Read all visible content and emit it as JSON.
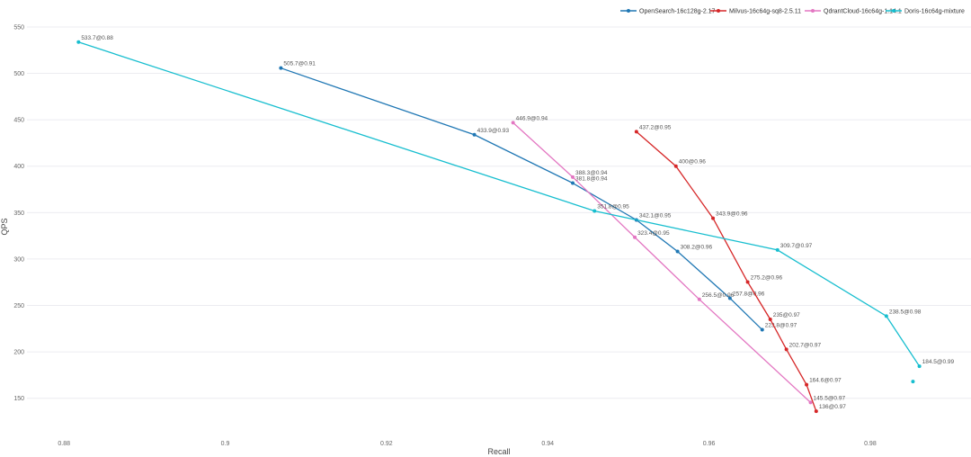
{
  "chart_data": {
    "type": "line",
    "title": "",
    "xlabel": "Recall",
    "ylabel": "QPS",
    "xlim": [
      0.8763,
      0.9925
    ],
    "ylim": [
      109,
      561.6
    ],
    "xticks": [
      0.88,
      0.9,
      0.92,
      0.94,
      0.96,
      0.98
    ],
    "xtick_labels": [
      "0.88",
      "0.9",
      "0.92",
      "0.94",
      "0.96",
      "0.98"
    ],
    "yticks": [
      150,
      200,
      250,
      300,
      350,
      400,
      450,
      500,
      550
    ],
    "ytick_labels": [
      "150",
      "200",
      "250",
      "300",
      "350",
      "400",
      "450",
      "500",
      "550"
    ],
    "grid": "horizontal",
    "legend_position": "top-right",
    "series": [
      {
        "name": "OpenSearch-16c128g-2.17",
        "color": "#1f77b4",
        "points": [
          {
            "x": 0.9069,
            "y": 505.7,
            "label": "505.7@0.91"
          },
          {
            "x": 0.9309,
            "y": 433.9,
            "label": "433.9@0.93"
          },
          {
            "x": 0.9431,
            "y": 381.8,
            "label": "381.8@0.94"
          },
          {
            "x": 0.951,
            "y": 342.1,
            "label": "342.1@0.95"
          },
          {
            "x": 0.9561,
            "y": 308.2,
            "label": "308.2@0.96"
          },
          {
            "x": 0.9626,
            "y": 257.8,
            "label": "257.8@0.96"
          },
          {
            "x": 0.9666,
            "y": 223.8,
            "label": "223.8@0.97"
          }
        ]
      },
      {
        "name": "Milvus-16c64g-sq8-2.5.11",
        "color": "#d62728",
        "points": [
          {
            "x": 0.951,
            "y": 437.2,
            "label": "437.2@0.95"
          },
          {
            "x": 0.9559,
            "y": 400,
            "label": "400@0.96"
          },
          {
            "x": 0.9605,
            "y": 343.9,
            "label": "343.9@0.96"
          },
          {
            "x": 0.9648,
            "y": 275.2,
            "label": "275.2@0.96"
          },
          {
            "x": 0.9676,
            "y": 235,
            "label": "235@0.97"
          },
          {
            "x": 0.9696,
            "y": 202.7,
            "label": "202.7@0.97"
          },
          {
            "x": 0.9721,
            "y": 164.6,
            "label": "164.6@0.97"
          },
          {
            "x": 0.9733,
            "y": 136,
            "label": "136@0.97"
          }
        ]
      },
      {
        "name": "QdrantCloud-16c64g-1.14.1",
        "color": "#e377c2",
        "points": [
          {
            "x": 0.9357,
            "y": 446.9,
            "label": "446.9@0.94"
          },
          {
            "x": 0.9431,
            "y": 388.3,
            "label": "388.3@0.94"
          },
          {
            "x": 0.9508,
            "y": 323.4,
            "label": "323.4@0.95"
          },
          {
            "x": 0.9588,
            "y": 256.5,
            "label": "256.5@0.96"
          },
          {
            "x": 0.9726,
            "y": 145.5,
            "label": "145.5@0.97"
          }
        ]
      },
      {
        "name": "Doris-16c64g-mixture",
        "color": "#17becf",
        "points": [
          {
            "x": 0.8818,
            "y": 533.7,
            "label": "533.7@0.88"
          },
          {
            "x": 0.9458,
            "y": 351.8,
            "label": "351.8@0.95"
          },
          {
            "x": 0.9685,
            "y": 309.7,
            "label": "309.7@0.97"
          },
          {
            "x": 0.982,
            "y": 238.5,
            "label": "238.5@0.98"
          },
          {
            "x": 0.9861,
            "y": 184.5,
            "label": "184.5@0.99"
          }
        ],
        "extra_points": [
          {
            "x": 0.9853,
            "y": 168
          }
        ]
      }
    ]
  }
}
